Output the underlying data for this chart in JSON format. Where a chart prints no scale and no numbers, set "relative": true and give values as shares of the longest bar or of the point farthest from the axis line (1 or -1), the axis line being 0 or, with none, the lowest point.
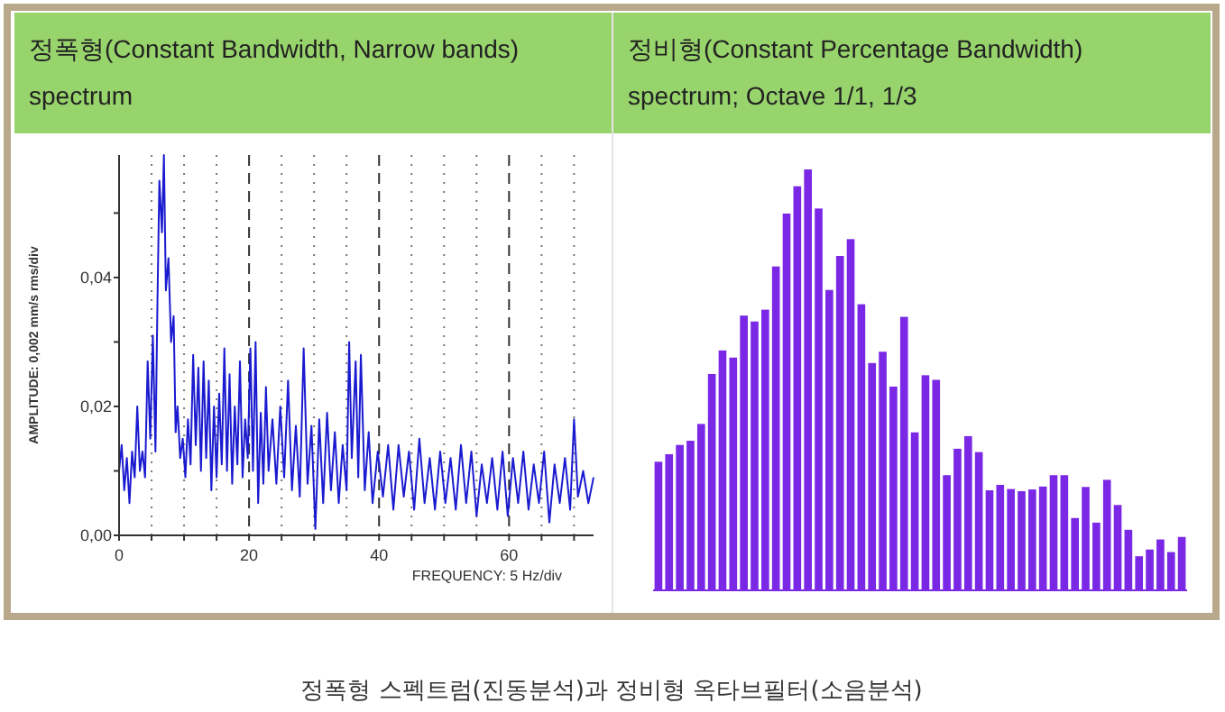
{
  "chart_data": [
    {
      "type": "line",
      "title": "정폭형(Constant Bandwidth, Narrow bands) spectrum",
      "xlabel": "FREQUENCY: 5 Hz/div",
      "ylabel": "AMPLITUDE: 0,002 mm/s rms/div",
      "x": [
        0,
        0.4,
        0.8,
        1.2,
        1.6,
        2.0,
        2.4,
        2.8,
        3.2,
        3.6,
        4.0,
        4.4,
        4.8,
        5.2,
        5.6,
        5.9,
        6.2,
        6.6,
        6.9,
        7.2,
        7.6,
        8.0,
        8.4,
        8.7,
        9.0,
        9.4,
        9.8,
        10.2,
        10.6,
        11.0,
        11.4,
        11.8,
        12.2,
        12.6,
        13.0,
        13.4,
        13.8,
        14.2,
        14.6,
        15.0,
        15.4,
        15.8,
        16.2,
        16.6,
        17.0,
        17.4,
        17.8,
        18.2,
        18.6,
        19.0,
        19.4,
        19.8,
        20.2,
        20.6,
        21.0,
        21.4,
        21.8,
        22.2,
        22.6,
        23.0,
        23.6,
        24.2,
        24.8,
        25.4,
        26.0,
        26.6,
        27.2,
        27.8,
        28.4,
        29.0,
        29.6,
        30.2,
        30.8,
        31.4,
        32.0,
        32.6,
        33.2,
        33.8,
        34.4,
        35.0,
        35.4,
        35.8,
        36.4,
        36.8,
        37.2,
        37.8,
        38.4,
        39.0,
        39.8,
        40.6,
        41.4,
        42.2,
        43.0,
        43.8,
        44.6,
        45.4,
        46.2,
        47.0,
        47.8,
        48.6,
        49.4,
        50.2,
        51.0,
        51.8,
        52.6,
        53.4,
        54.2,
        55.0,
        55.8,
        56.6,
        57.4,
        58.2,
        59.0,
        59.8,
        60.6,
        61.4,
        62.2,
        63.0,
        63.8,
        64.6,
        65.4,
        66.2,
        67.0,
        67.8,
        68.6,
        69.4,
        70.0,
        70.6,
        71.4,
        72.2,
        73.0
      ],
      "series": [
        {
          "color": "#1a1ad0",
          "values": [
            0.01,
            0.014,
            0.007,
            0.012,
            0.005,
            0.013,
            0.009,
            0.02,
            0.01,
            0.013,
            0.009,
            0.027,
            0.015,
            0.031,
            0.013,
            0.036,
            0.055,
            0.047,
            0.059,
            0.038,
            0.043,
            0.03,
            0.034,
            0.016,
            0.02,
            0.012,
            0.015,
            0.009,
            0.018,
            0.011,
            0.028,
            0.014,
            0.026,
            0.01,
            0.027,
            0.012,
            0.024,
            0.007,
            0.02,
            0.009,
            0.022,
            0.011,
            0.029,
            0.01,
            0.025,
            0.008,
            0.02,
            0.011,
            0.027,
            0.009,
            0.018,
            0.012,
            0.029,
            0.01,
            0.03,
            0.005,
            0.019,
            0.008,
            0.023,
            0.01,
            0.018,
            0.008,
            0.02,
            0.009,
            0.024,
            0.007,
            0.017,
            0.006,
            0.029,
            0.008,
            0.017,
            0.001,
            0.018,
            0.005,
            0.019,
            0.007,
            0.016,
            0.005,
            0.014,
            0.007,
            0.03,
            0.012,
            0.027,
            0.009,
            0.028,
            0.007,
            0.016,
            0.005,
            0.013,
            0.006,
            0.014,
            0.004,
            0.014,
            0.006,
            0.013,
            0.004,
            0.015,
            0.005,
            0.012,
            0.004,
            0.013,
            0.005,
            0.012,
            0.004,
            0.014,
            0.005,
            0.013,
            0.003,
            0.011,
            0.005,
            0.012,
            0.004,
            0.013,
            0.003,
            0.012,
            0.005,
            0.013,
            0.004,
            0.011,
            0.005,
            0.013,
            0.002,
            0.011,
            0.005,
            0.012,
            0.004,
            0.018,
            0.006,
            0.01,
            0.005,
            0.009
          ]
        }
      ],
      "xlim": [
        0,
        73
      ],
      "ylim": [
        0,
        0.059
      ],
      "xticks": [
        0,
        {
          "value": 5,
          "label": null
        },
        {
          "value": 10,
          "label": null
        },
        {
          "value": 15,
          "label": null
        },
        20,
        {
          "value": 25,
          "label": null
        },
        {
          "value": 30,
          "label": null
        },
        {
          "value": 35,
          "label": null
        },
        40,
        {
          "value": 45,
          "label": null
        },
        {
          "value": 50,
          "label": null
        },
        {
          "value": 55,
          "label": null
        },
        60,
        {
          "value": 65,
          "label": null
        },
        {
          "value": 70,
          "label": null
        }
      ],
      "yticks": [
        {
          "value": 0,
          "label": "0,00"
        },
        {
          "value": 0.01,
          "label": null
        },
        {
          "value": 0.02,
          "label": "0,02"
        },
        {
          "value": 0.03,
          "label": null
        },
        {
          "value": 0.04,
          "label": "0,04"
        },
        {
          "value": 0.05,
          "label": null
        }
      ],
      "grid": "x",
      "annotations": [
        "정폭형 스펙트럼(진동분석)과 정비형 옥타브필터(소음분석)"
      ]
    },
    {
      "type": "bar",
      "title": "정비형(Constant Percentage Bandwidth) spectrum; Octave 1/1, 1/3",
      "relative": true,
      "color": "#7a28e6",
      "categories": [
        null,
        null,
        null,
        null,
        null,
        null,
        null,
        null,
        null,
        null,
        null,
        null,
        null,
        null,
        null,
        null,
        null,
        null,
        null,
        null,
        null,
        null,
        null,
        null,
        null,
        null,
        null,
        null,
        null,
        null,
        null,
        null,
        null,
        null,
        null,
        null,
        null,
        null,
        null,
        null,
        null,
        null,
        null,
        null,
        null,
        null,
        null,
        null,
        null,
        null
      ],
      "values": [
        0.304,
        0.322,
        0.344,
        0.354,
        0.394,
        0.513,
        0.569,
        0.552,
        0.652,
        0.638,
        0.666,
        0.769,
        0.895,
        0.96,
        1,
        0.907,
        0.713,
        0.794,
        0.834,
        0.679,
        0.539,
        0.566,
        0.483,
        0.649,
        0.374,
        0.51,
        0.499,
        0.272,
        0.335,
        0.365,
        0.327,
        0.236,
        0.249,
        0.239,
        0.234,
        0.238,
        0.245,
        0.272,
        0.272,
        0.17,
        0.244,
        0.159,
        0.261,
        0.201,
        0.142,
        0.079,
        0.095,
        0.119,
        0.089,
        0.125
      ]
    }
  ]
}
